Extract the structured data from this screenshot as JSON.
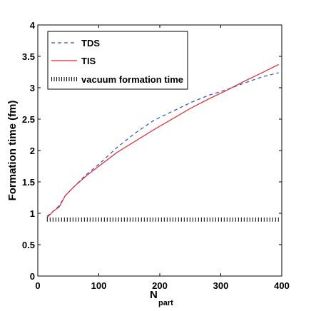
{
  "chart_data": {
    "type": "line",
    "title": "",
    "xlabel_main": "N",
    "xlabel_sub": "part",
    "ylabel": "Formation time (fm)",
    "xlim": [
      0,
      400
    ],
    "ylim": [
      0,
      4
    ],
    "x_ticks": [
      0,
      100,
      200,
      300,
      400
    ],
    "y_ticks": [
      0,
      0.5,
      1,
      1.5,
      2,
      2.5,
      3,
      3.5,
      4
    ],
    "y_tick_labels": [
      "0",
      "0.5",
      "1",
      "1.5",
      "2",
      "2.5",
      "3",
      "3.5",
      "4"
    ],
    "grid": false,
    "legend_position": "top-left",
    "series": [
      {
        "name": "TDS",
        "style": "dashed",
        "color": "#2b50d6",
        "x": [
          15,
          25,
          35,
          45,
          60,
          80,
          100,
          130,
          160,
          190,
          220,
          250,
          280,
          310,
          340,
          370,
          395
        ],
        "y": [
          0.95,
          1.03,
          1.12,
          1.28,
          1.43,
          1.62,
          1.78,
          2.05,
          2.28,
          2.48,
          2.62,
          2.76,
          2.88,
          2.97,
          3.08,
          3.18,
          3.24
        ]
      },
      {
        "name": "TIS",
        "style": "solid",
        "color": "#e8242c",
        "x": [
          15,
          25,
          35,
          45,
          60,
          80,
          100,
          130,
          160,
          190,
          220,
          250,
          280,
          310,
          340,
          370,
          395
        ],
        "y": [
          0.93,
          1.03,
          1.1,
          1.28,
          1.43,
          1.6,
          1.75,
          1.97,
          2.15,
          2.33,
          2.5,
          2.67,
          2.82,
          2.96,
          3.11,
          3.25,
          3.37
        ]
      },
      {
        "name": "vacuum formation time",
        "style": "dotted",
        "color": "#000000",
        "x": [
          15,
          395
        ],
        "y": [
          0.9,
          0.9
        ]
      }
    ]
  }
}
